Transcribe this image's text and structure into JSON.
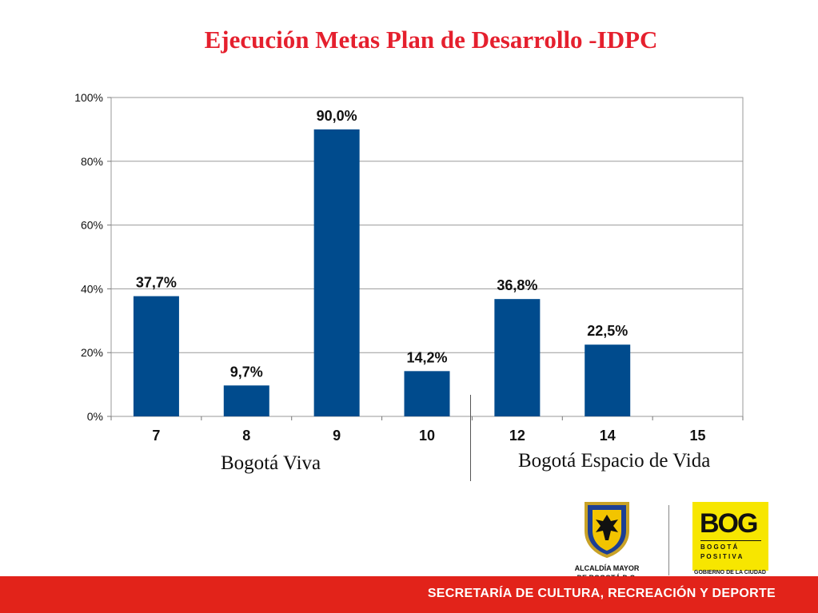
{
  "title": "Ejecución Metas Plan de Desarrollo -IDPC",
  "chart_data": {
    "type": "bar",
    "categories": [
      "7",
      "8",
      "9",
      "10",
      "12",
      "14",
      "15"
    ],
    "values": [
      37.7,
      9.7,
      90.0,
      14.2,
      36.8,
      22.5,
      null
    ],
    "value_labels": [
      "37,7%",
      "9,7%",
      "90,0%",
      "14,2%",
      "36,8%",
      "22,5%",
      ""
    ],
    "y_ticks": [
      "0%",
      "20%",
      "40%",
      "60%",
      "80%",
      "100%"
    ],
    "ylim": [
      0,
      100
    ],
    "grid": true,
    "bar_color": "#004b8d",
    "groups": [
      {
        "label": "Bogotá Viva",
        "categories": [
          "7",
          "8",
          "9",
          "10"
        ]
      },
      {
        "label": "Bogotá Espacio de Vida",
        "categories": [
          "12",
          "14",
          "15"
        ]
      }
    ]
  },
  "logos": {
    "alcaldia_text_1": "ALCALDÍA MAYOR",
    "alcaldia_text_2": "DE BOGOTÁ D.C.",
    "bog_brand": "BOG",
    "bog_word_1": "B O G O T Á",
    "bog_word_2": "P O S I T I V A",
    "bog_sub": "GOBIERNO DE LA CIUDAD"
  },
  "footer": "SECRETARÍA DE CULTURA, RECREACIÓN Y DEPORTE",
  "colors": {
    "title": "#e5202e",
    "bars": "#004b8d",
    "footer": "#e2231a"
  }
}
